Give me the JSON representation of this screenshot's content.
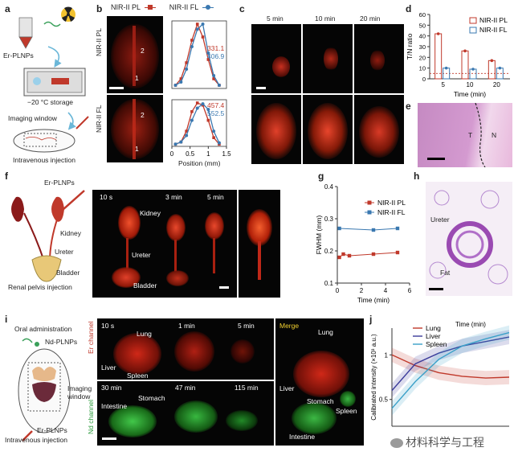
{
  "panels": {
    "a": "a",
    "b": "b",
    "c": "c",
    "d": "d",
    "e": "e",
    "f": "f",
    "g": "g",
    "h": "h",
    "i": "i",
    "j": "j"
  },
  "a": {
    "er_plnps": "Er-PLNPs",
    "storage": "−20 °C storage",
    "window": "Imaging window",
    "injection": "Intravenous injection"
  },
  "b": {
    "legend_pl": "NIR-II PL",
    "legend_fl": "NIR-II FL",
    "row_pl": "NIR-II PL",
    "row_fl": "NIR-II FL",
    "mark1": "1",
    "mark2": "2",
    "pl_val1": "331.1",
    "pl_val2": "406.9",
    "fl_val1": "457.4",
    "fl_val2": "552.5",
    "xlabel": "Position (mm)"
  },
  "c": {
    "t1": "5 min",
    "t2": "10 min",
    "t3": "20 min"
  },
  "e": {
    "T": "T",
    "N": "N"
  },
  "f": {
    "er_plnps": "Er-PLNPs",
    "kidney": "Kidney",
    "ureter": "Ureter",
    "bladder": "Bladder",
    "caption": "Renal pelvis injection",
    "t1": "10 s",
    "t2": "3 min",
    "t3": "5 min",
    "img_kidney": "Kidney",
    "img_ureter": "Ureter",
    "img_bladder": "Bladder"
  },
  "h": {
    "ureter": "Ureter",
    "fat": "Fat"
  },
  "i": {
    "oral": "Oral administration",
    "nd": "Nd-PLNPs",
    "window": "Imaging window",
    "er": "Er-PLNPs",
    "injection": "Intravenous injection",
    "er_channel": "Er channel",
    "nd_channel": "Nd channel",
    "t1": "10 s",
    "t2": "1 min",
    "t3": "5 min",
    "t4": "30 min",
    "t5": "47 min",
    "t6": "115 min",
    "lung": "Lung",
    "liver": "Liver",
    "spleen": "Spleen",
    "intestine": "Intestine",
    "stomach": "Stomach",
    "merge": "Merge",
    "m_lung": "Lung",
    "m_liver": "Liver",
    "m_stomach": "Stomach",
    "m_spleen": "Spleen",
    "m_intestine": "Intestine"
  },
  "watermark": "材料科学与工程",
  "colors": {
    "pl": "#c0392b",
    "fl": "#3a78b0",
    "liver": "#3b3b9a",
    "spleen": "#3aa0c8",
    "lung": "#c0392b"
  },
  "chart_data": [
    {
      "id": "b-top",
      "type": "line",
      "xlim": [
        0,
        1.5
      ],
      "series": [
        {
          "name": "NIR-II PL",
          "x": [
            0.1,
            0.25,
            0.4,
            0.55,
            0.7,
            0.85,
            1.0,
            1.15,
            1.3
          ],
          "y": [
            0.05,
            0.15,
            0.4,
            0.75,
            1.0,
            0.8,
            0.45,
            0.15,
            0.05
          ]
        },
        {
          "name": "NIR-II FL",
          "x": [
            0.1,
            0.25,
            0.4,
            0.55,
            0.7,
            0.85,
            1.0,
            1.15,
            1.3
          ],
          "y": [
            0.05,
            0.1,
            0.3,
            0.65,
            0.92,
            1.0,
            0.55,
            0.2,
            0.05
          ]
        }
      ]
    },
    {
      "id": "b-bottom",
      "type": "line",
      "xticks": [
        0,
        0.5,
        1.0,
        1.5
      ],
      "xlim": [
        0,
        1.5
      ],
      "xlabel": "Position (mm)",
      "series": [
        {
          "name": "NIR-II PL",
          "x": [
            0.1,
            0.25,
            0.4,
            0.55,
            0.7,
            0.85,
            1.0,
            1.15,
            1.3
          ],
          "y": [
            0.05,
            0.1,
            0.35,
            0.8,
            1.0,
            0.95,
            0.6,
            0.2,
            0.05
          ]
        },
        {
          "name": "NIR-II FL",
          "x": [
            0.1,
            0.25,
            0.4,
            0.55,
            0.7,
            0.85,
            1.0,
            1.15,
            1.3
          ],
          "y": [
            0.05,
            0.1,
            0.25,
            0.6,
            0.88,
            0.98,
            0.85,
            0.35,
            0.08
          ]
        }
      ]
    },
    {
      "id": "d",
      "type": "bar",
      "categories": [
        "5",
        "10",
        "20"
      ],
      "ylabel": "T/N ratio",
      "xlabel": "Time (min)",
      "ylim": [
        0,
        60
      ],
      "yticks": [
        0,
        10,
        20,
        30,
        40,
        50,
        60
      ],
      "series": [
        {
          "name": "NIR-II PL",
          "values": [
            42,
            26,
            17
          ]
        },
        {
          "name": "NIR-II FL",
          "values": [
            10,
            9,
            10
          ]
        }
      ]
    },
    {
      "id": "g",
      "type": "line",
      "xlabel": "Time (min)",
      "ylabel": "FWHM (mm)",
      "xlim": [
        0,
        6
      ],
      "xticks": [
        0,
        2,
        4,
        6
      ],
      "ylim": [
        0.1,
        0.4
      ],
      "yticks": [
        0.1,
        0.2,
        0.3,
        0.4
      ],
      "series": [
        {
          "name": "NIR-II PL",
          "x": [
            0.17,
            0.5,
            1.0,
            3.0,
            5.0
          ],
          "y": [
            0.18,
            0.19,
            0.185,
            0.19,
            0.195
          ]
        },
        {
          "name": "NIR-II FL",
          "x": [
            0.17,
            3.0,
            5.0
          ],
          "y": [
            0.27,
            0.265,
            0.27
          ]
        }
      ]
    },
    {
      "id": "j",
      "type": "line",
      "xlabel": "Time (min)",
      "ylabel": "Calibrated intensity (×10³ a.u.)",
      "yticks": [
        0.5,
        1
      ],
      "ylim": [
        0.2,
        1.3
      ],
      "xlim": [
        0,
        100
      ],
      "series": [
        {
          "name": "Lung",
          "x": [
            0,
            20,
            40,
            60,
            80,
            100
          ],
          "y": [
            1.0,
            0.88,
            0.8,
            0.76,
            0.74,
            0.75
          ]
        },
        {
          "name": "Liver",
          "x": [
            0,
            20,
            40,
            60,
            80,
            100
          ],
          "y": [
            0.6,
            0.9,
            1.02,
            1.1,
            1.15,
            1.2
          ]
        },
        {
          "name": "Spleen",
          "x": [
            0,
            20,
            40,
            60,
            80,
            100
          ],
          "y": [
            0.4,
            0.7,
            0.95,
            1.1,
            1.18,
            1.25
          ]
        }
      ]
    }
  ]
}
